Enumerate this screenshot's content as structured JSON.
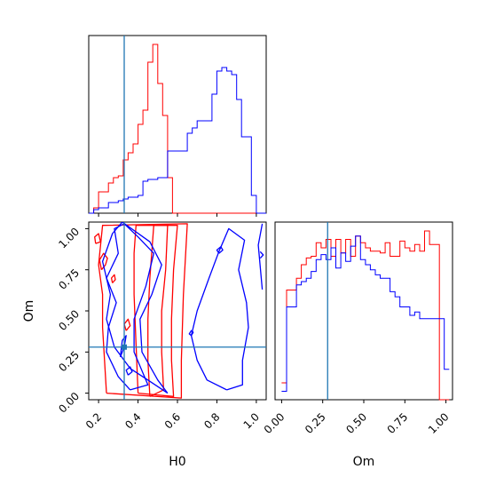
{
  "chart_data": [
    {
      "id": "hist_h0",
      "type": "histogram",
      "title": "",
      "xlabel": "",
      "ylabel": "",
      "xlim": [
        0.15,
        1.05
      ],
      "bins": [
        0.15,
        0.175,
        0.2,
        0.225,
        0.25,
        0.275,
        0.3,
        0.325,
        0.35,
        0.375,
        0.4,
        0.425,
        0.45,
        0.475,
        0.5,
        0.525,
        0.55,
        0.575,
        0.6,
        0.625,
        0.65,
        0.675,
        0.7,
        0.725,
        0.75,
        0.775,
        0.8,
        0.825,
        0.85,
        0.875,
        0.9,
        0.925,
        0.95,
        0.975,
        1.0,
        1.025,
        1.05
      ],
      "series": [
        {
          "color": "#ff0000",
          "values": [
            0,
            0.03,
            0.12,
            0.12,
            0.17,
            0.2,
            0.21,
            0.3,
            0.34,
            0.39,
            0.5,
            0.58,
            0.85,
            0.95,
            0.73,
            0.55,
            0.2,
            0,
            0,
            0,
            0,
            0,
            0,
            0,
            0,
            0,
            0,
            0,
            0,
            0,
            0,
            0,
            0,
            0,
            0,
            0
          ]
        },
        {
          "color": "#0000ff",
          "values": [
            0,
            0.02,
            0.03,
            0.03,
            0.06,
            0.06,
            0.07,
            0.08,
            0.09,
            0.09,
            0.1,
            0.18,
            0.19,
            0.19,
            0.2,
            0.2,
            0.35,
            0.35,
            0.35,
            0.35,
            0.45,
            0.48,
            0.52,
            0.52,
            0.52,
            0.67,
            0.8,
            0.82,
            0.8,
            0.78,
            0.64,
            0.43,
            0.43,
            0.1,
            0,
            0
          ]
        }
      ],
      "truth_x": 0.33
    },
    {
      "id": "contour_h0_om",
      "type": "contour",
      "xlabel": "H0",
      "ylabel": "Om",
      "xlim": [
        0.15,
        1.05
      ],
      "ylim": [
        -0.04,
        1.04
      ],
      "xticks": [
        "0.2",
        "0.4",
        "0.6",
        "0.8",
        "1.0"
      ],
      "yticks": [
        "0.00",
        "0.25",
        "0.50",
        "0.75",
        "1.00"
      ],
      "truth": [
        0.33,
        0.28
      ],
      "series": [
        {
          "color": "#ff0000",
          "contours": [
            [
              [
                0.46,
                -0.02
              ],
              [
                0.45,
                0.2
              ],
              [
                0.45,
                0.45
              ],
              [
                0.46,
                0.7
              ],
              [
                0.48,
                1.02
              ],
              [
                0.55,
                1.02
              ],
              [
                0.54,
                0.75
              ],
              [
                0.52,
                0.5
              ],
              [
                0.52,
                0.25
              ],
              [
                0.53,
                0.02
              ],
              [
                0.46,
                -0.02
              ]
            ],
            [
              [
                0.4,
                0.0
              ],
              [
                0.39,
                0.3
              ],
              [
                0.38,
                0.6
              ],
              [
                0.38,
                0.85
              ],
              [
                0.39,
                1.02
              ],
              [
                0.6,
                1.02
              ],
              [
                0.58,
                0.75
              ],
              [
                0.57,
                0.45
              ],
              [
                0.57,
                0.2
              ],
              [
                0.58,
                -0.02
              ],
              [
                0.4,
                0.0
              ]
            ],
            [
              [
                0.24,
                0.0
              ],
              [
                0.22,
                0.4
              ],
              [
                0.22,
                0.6
              ],
              [
                0.2,
                0.78
              ],
              [
                0.22,
                1.02
              ],
              [
                0.65,
                1.03
              ],
              [
                0.63,
                0.6
              ],
              [
                0.62,
                0.2
              ],
              [
                0.62,
                -0.03
              ],
              [
                0.24,
                0.0
              ]
            ],
            [
              [
                0.215,
                0.75
              ],
              [
                0.235,
                0.78
              ],
              [
                0.245,
                0.82
              ],
              [
                0.225,
                0.85
              ],
              [
                0.205,
                0.81
              ],
              [
                0.215,
                0.75
              ]
            ],
            [
              [
                0.185,
                0.91
              ],
              [
                0.21,
                0.92
              ],
              [
                0.2,
                0.97
              ],
              [
                0.18,
                0.95
              ],
              [
                0.185,
                0.91
              ]
            ],
            [
              [
                0.34,
                0.38
              ],
              [
                0.36,
                0.41
              ],
              [
                0.35,
                0.45
              ],
              [
                0.33,
                0.42
              ],
              [
                0.34,
                0.38
              ]
            ],
            [
              [
                0.27,
                0.67
              ],
              [
                0.285,
                0.69
              ],
              [
                0.28,
                0.72
              ],
              [
                0.265,
                0.7
              ],
              [
                0.27,
                0.67
              ]
            ]
          ]
        },
        {
          "color": "#0000ff",
          "contours": [
            [
              [
                0.31,
                0.22
              ],
              [
                0.33,
                0.28
              ],
              [
                0.34,
                0.35
              ],
              [
                0.32,
                0.32
              ],
              [
                0.31,
                0.22
              ]
            ],
            [
              [
                0.36,
                0.02
              ],
              [
                0.3,
                0.1
              ],
              [
                0.24,
                0.25
              ],
              [
                0.25,
                0.4
              ],
              [
                0.29,
                0.55
              ],
              [
                0.24,
                0.7
              ],
              [
                0.3,
                0.85
              ],
              [
                0.28,
                1.0
              ],
              [
                0.33,
                1.03
              ],
              [
                0.4,
                0.95
              ],
              [
                0.48,
                0.85
              ],
              [
                0.44,
                0.65
              ],
              [
                0.38,
                0.45
              ],
              [
                0.38,
                0.25
              ],
              [
                0.45,
                0.05
              ],
              [
                0.36,
                0.02
              ]
            ],
            [
              [
                0.55,
                0.0
              ],
              [
                0.45,
                0.08
              ],
              [
                0.36,
                0.15
              ],
              [
                0.28,
                0.28
              ],
              [
                0.24,
                0.45
              ],
              [
                0.26,
                0.6
              ],
              [
                0.22,
                0.8
              ],
              [
                0.27,
                0.97
              ],
              [
                0.32,
                1.04
              ],
              [
                0.46,
                0.92
              ],
              [
                0.52,
                0.78
              ],
              [
                0.47,
                0.6
              ],
              [
                0.41,
                0.45
              ],
              [
                0.42,
                0.25
              ],
              [
                0.5,
                0.08
              ],
              [
                0.55,
                0.0
              ]
            ],
            [
              [
                0.85,
                0.02
              ],
              [
                0.75,
                0.08
              ],
              [
                0.7,
                0.2
              ],
              [
                0.67,
                0.35
              ],
              [
                0.7,
                0.5
              ],
              [
                0.76,
                0.7
              ],
              [
                0.81,
                0.86
              ],
              [
                0.86,
                1.0
              ],
              [
                0.94,
                0.93
              ],
              [
                0.91,
                0.75
              ],
              [
                0.95,
                0.55
              ],
              [
                0.96,
                0.4
              ],
              [
                0.93,
                0.2
              ],
              [
                0.93,
                0.05
              ],
              [
                0.85,
                0.02
              ]
            ],
            [
              [
                0.35,
                0.11
              ],
              [
                0.37,
                0.13
              ],
              [
                0.36,
                0.16
              ],
              [
                0.34,
                0.14
              ],
              [
                0.35,
                0.11
              ]
            ],
            [
              [
                0.67,
                0.35
              ],
              [
                0.68,
                0.37
              ],
              [
                0.67,
                0.38
              ],
              [
                0.66,
                0.36
              ],
              [
                0.67,
                0.35
              ]
            ],
            [
              [
                0.81,
                0.85
              ],
              [
                0.83,
                0.87
              ],
              [
                0.82,
                0.89
              ],
              [
                0.8,
                0.87
              ],
              [
                0.81,
                0.85
              ]
            ],
            [
              [
                1.03,
                0.63
              ],
              [
                1.01,
                0.9
              ],
              [
                1.03,
                1.03
              ]
            ],
            [
              [
                1.02,
                0.82
              ],
              [
                1.035,
                0.84
              ],
              [
                1.02,
                0.86
              ]
            ]
          ]
        }
      ]
    },
    {
      "id": "hist_om",
      "type": "histogram",
      "xlabel": "Om",
      "ylabel": "",
      "xlim": [
        -0.04,
        1.04
      ],
      "xticks": [
        "0.00",
        "0.25",
        "0.50",
        "0.75",
        "1.00"
      ],
      "bins": [
        0.0,
        0.03,
        0.06,
        0.09,
        0.12,
        0.15,
        0.18,
        0.21,
        0.24,
        0.27,
        0.3,
        0.33,
        0.36,
        0.39,
        0.42,
        0.45,
        0.48,
        0.51,
        0.54,
        0.57,
        0.6,
        0.63,
        0.66,
        0.69,
        0.72,
        0.75,
        0.78,
        0.81,
        0.84,
        0.87,
        0.9,
        0.93,
        0.96,
        0.99,
        1.02
      ],
      "series": [
        {
          "color": "#ff0000",
          "values": [
            0.1,
            0.65,
            0.65,
            0.72,
            0.8,
            0.84,
            0.85,
            0.93,
            0.9,
            0.95,
            0.85,
            0.95,
            0.87,
            0.95,
            0.85,
            0.97,
            0.93,
            0.9,
            0.88,
            0.88,
            0.87,
            0.93,
            0.85,
            0.85,
            0.94,
            0.9,
            0.88,
            0.92,
            0.88,
            1.0,
            0.92,
            0.92,
            0.0,
            0.0
          ]
        },
        {
          "color": "#0000ff",
          "values": [
            0.05,
            0.55,
            0.55,
            0.68,
            0.7,
            0.72,
            0.76,
            0.83,
            0.86,
            0.83,
            0.9,
            0.78,
            0.87,
            0.82,
            0.91,
            0.97,
            0.83,
            0.8,
            0.77,
            0.74,
            0.72,
            0.72,
            0.64,
            0.61,
            0.55,
            0.55,
            0.5,
            0.52,
            0.48,
            0.48,
            0.48,
            0.48,
            0.48,
            0.18
          ]
        }
      ],
      "truth_x": 0.28
    }
  ]
}
